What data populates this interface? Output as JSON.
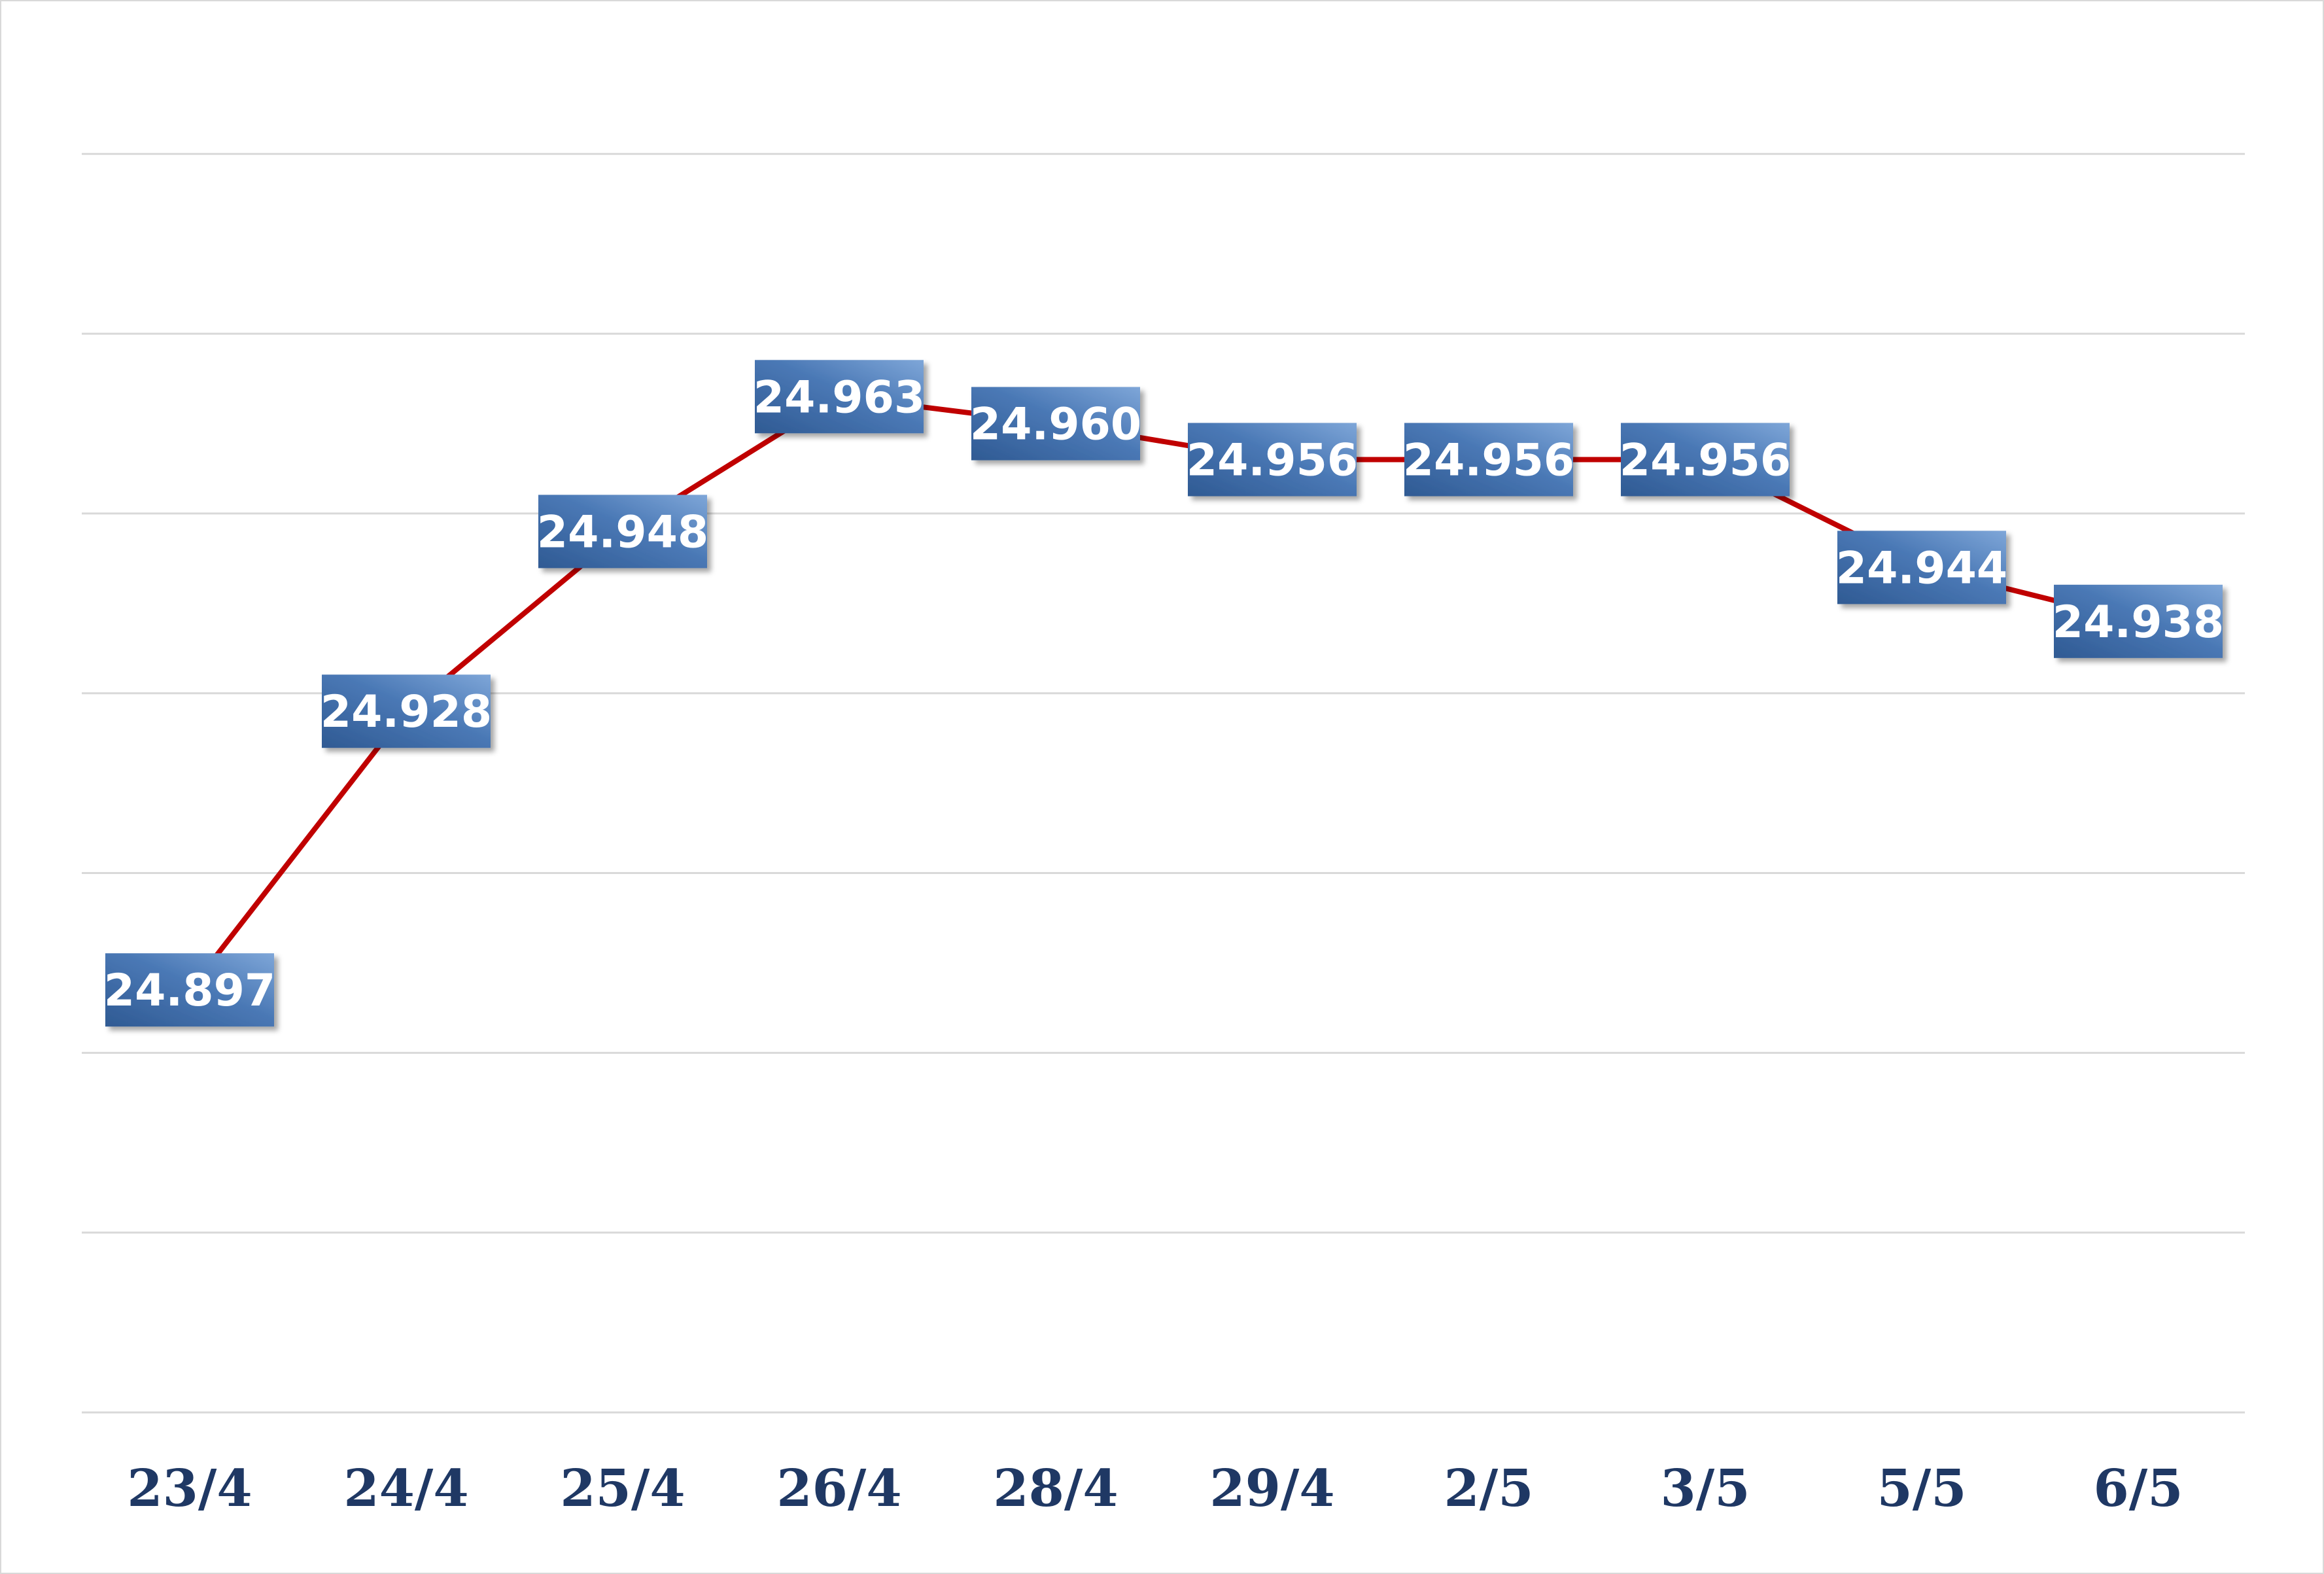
{
  "chart_data": {
    "type": "line",
    "title": "",
    "xlabel": "",
    "ylabel": "",
    "categories": [
      "23/4",
      "24/4",
      "25/4",
      "26/4",
      "28/4",
      "29/4",
      "2/5",
      "3/5",
      "5/5",
      "6/5"
    ],
    "series": [
      {
        "values": [
          24.897,
          24.928,
          24.948,
          24.963,
          24.96,
          24.956,
          24.956,
          24.956,
          24.944,
          24.938
        ],
        "labels": [
          "24.897",
          "24.928",
          "24.948",
          "24.963",
          "24.960",
          "24.956",
          "24.956",
          "24.956",
          "24.944",
          "24.938"
        ],
        "color": "#c00000"
      }
    ],
    "data_label_fill": "#4f81bd",
    "ylim": [
      24.85,
      24.985
    ],
    "gridlines": true,
    "legend": "none"
  }
}
